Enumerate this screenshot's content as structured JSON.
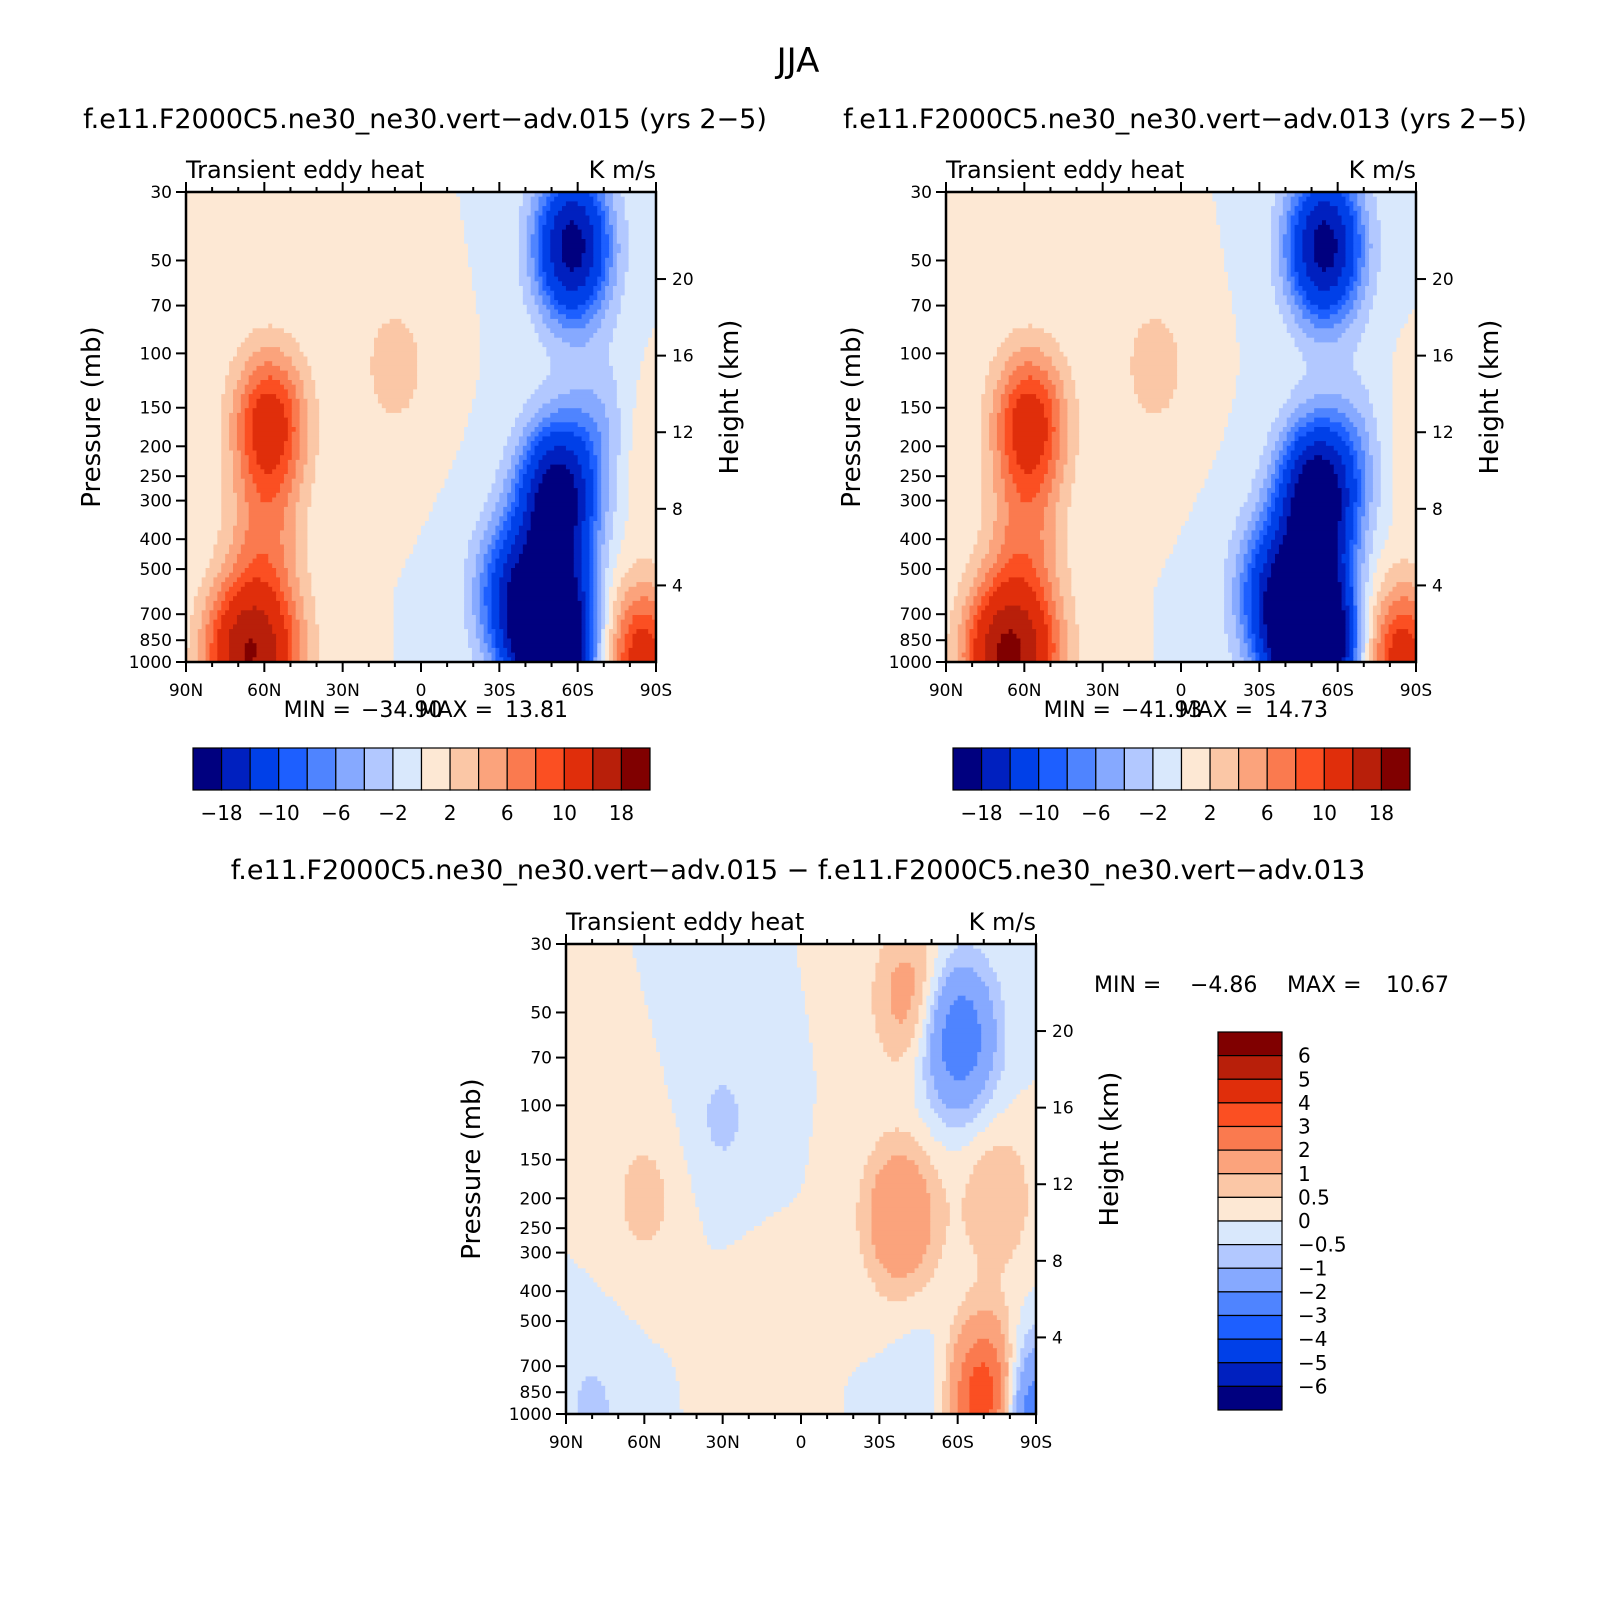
{
  "figure_title": "JJA",
  "palettes": {
    "seasonal": [
      "#00007f",
      "#0020bf",
      "#0040e8",
      "#1d5fff",
      "#4f84ff",
      "#86a9ff",
      "#b2c8ff",
      "#d9e8fc",
      "#fde8d4",
      "#fbc7a6",
      "#fba37c",
      "#fa7a4f",
      "#fb4f22",
      "#e02e0b",
      "#b81f0a",
      "#800000"
    ],
    "difference": [
      "#00007f",
      "#0020bf",
      "#0040e8",
      "#1d5fff",
      "#4f84ff",
      "#86a9ff",
      "#b2c8ff",
      "#d9e8fc",
      "#fde8d4",
      "#fbc7a6",
      "#fba37c",
      "#fa7a4f",
      "#fb4f22",
      "#e02e0b",
      "#b81f0a",
      "#800000"
    ]
  },
  "chart_data": [
    {
      "type": "heatmap",
      "title": "f.e11.F2000C5.ne30_ne30.vert−adv.015 (yrs 2−5)",
      "left_label": "Transient eddy heat",
      "right_label": "K m/s",
      "ylabel": "Pressure (mb)",
      "ylabel_right": "Height (km)",
      "x_ticks": [
        "90N",
        "60N",
        "30N",
        "0",
        "30S",
        "60S",
        "90S"
      ],
      "x_tick_values": [
        90,
        60,
        30,
        0,
        -30,
        -60,
        -90
      ],
      "y_ticks": [
        "30",
        "50",
        "70",
        "100",
        "150",
        "200",
        "250",
        "300",
        "400",
        "500",
        "700",
        "850",
        "1000"
      ],
      "y_tick_values": [
        30,
        50,
        70,
        100,
        150,
        200,
        250,
        300,
        400,
        500,
        700,
        850,
        1000
      ],
      "y_right_ticks": [
        "20",
        "16",
        "12",
        "8",
        "4"
      ],
      "y_right_tick_values": [
        20,
        16,
        12,
        8,
        4
      ],
      "ylim": [
        1000,
        30
      ],
      "ylog": true,
      "xlim": [
        90,
        -90
      ],
      "min_label": "MIN =",
      "min_value": "−34.90",
      "max_label": "MAX =",
      "max_value": "13.81",
      "colorbar": {
        "orientation": "horizontal",
        "labels": [
          "−18",
          "−10",
          "−6",
          "−2",
          "2",
          "6",
          "10",
          "18"
        ]
      },
      "features": [
        {
          "lat": -50,
          "p": 840,
          "value": -36
        },
        {
          "lat": -52,
          "p": 300,
          "value": -22
        },
        {
          "lat": -58,
          "p": 45,
          "value": -20
        },
        {
          "lat": -35,
          "p": 600,
          "value": -12
        },
        {
          "lat": -70,
          "p": 180,
          "value": -5
        },
        {
          "lat": 58,
          "p": 170,
          "value": 12
        },
        {
          "lat": 70,
          "p": 950,
          "value": 13
        },
        {
          "lat": 57,
          "p": 930,
          "value": 9
        },
        {
          "lat": 60,
          "p": 400,
          "value": 5
        },
        {
          "lat": 10,
          "p": 110,
          "value": 3
        },
        {
          "lat": -80,
          "p": 200,
          "value": 3
        },
        {
          "lat": -85,
          "p": 980,
          "value": 12
        }
      ]
    },
    {
      "type": "heatmap",
      "title": "f.e11.F2000C5.ne30_ne30.vert−adv.013 (yrs 2−5)",
      "left_label": "Transient eddy heat",
      "right_label": "K m/s",
      "ylabel": "Pressure (mb)",
      "ylabel_right": "Height (km)",
      "x_ticks": [
        "90N",
        "60N",
        "30N",
        "0",
        "30S",
        "60S",
        "90S"
      ],
      "x_tick_values": [
        90,
        60,
        30,
        0,
        -30,
        -60,
        -90
      ],
      "y_ticks": [
        "30",
        "50",
        "70",
        "100",
        "150",
        "200",
        "250",
        "300",
        "400",
        "500",
        "700",
        "850",
        "1000"
      ],
      "y_tick_values": [
        30,
        50,
        70,
        100,
        150,
        200,
        250,
        300,
        400,
        500,
        700,
        850,
        1000
      ],
      "y_right_ticks": [
        "20",
        "16",
        "12",
        "8",
        "4"
      ],
      "y_right_tick_values": [
        20,
        16,
        12,
        8,
        4
      ],
      "ylim": [
        1000,
        30
      ],
      "ylog": true,
      "xlim": [
        90,
        -90
      ],
      "min_label": "MIN =",
      "min_value": "−41.93",
      "max_label": "MAX =",
      "max_value": "14.73",
      "colorbar": {
        "orientation": "horizontal",
        "labels": [
          "−18",
          "−10",
          "−6",
          "−2",
          "2",
          "6",
          "10",
          "18"
        ]
      },
      "features": [
        {
          "lat": -50,
          "p": 840,
          "value": -42
        },
        {
          "lat": -52,
          "p": 300,
          "value": -24
        },
        {
          "lat": -55,
          "p": 45,
          "value": -20
        },
        {
          "lat": -35,
          "p": 600,
          "value": -12
        },
        {
          "lat": -70,
          "p": 200,
          "value": -5
        },
        {
          "lat": 58,
          "p": 170,
          "value": 12
        },
        {
          "lat": 70,
          "p": 950,
          "value": 14
        },
        {
          "lat": 57,
          "p": 930,
          "value": 9
        },
        {
          "lat": 60,
          "p": 400,
          "value": 5
        },
        {
          "lat": 10,
          "p": 110,
          "value": 3
        },
        {
          "lat": -78,
          "p": 200,
          "value": 3
        },
        {
          "lat": -85,
          "p": 980,
          "value": 12
        }
      ]
    },
    {
      "type": "heatmap",
      "title": "f.e11.F2000C5.ne30_ne30.vert−adv.015 − f.e11.F2000C5.ne30_ne30.vert−adv.013",
      "left_label": "Transient eddy heat",
      "right_label": "K m/s",
      "ylabel": "Pressure (mb)",
      "ylabel_right": "Height (km)",
      "x_ticks": [
        "90N",
        "60N",
        "30N",
        "0",
        "30S",
        "60S",
        "90S"
      ],
      "x_tick_values": [
        90,
        60,
        30,
        0,
        -30,
        -60,
        -90
      ],
      "y_ticks": [
        "30",
        "50",
        "70",
        "100",
        "150",
        "200",
        "250",
        "300",
        "400",
        "500",
        "700",
        "850",
        "1000"
      ],
      "y_tick_values": [
        30,
        50,
        70,
        100,
        150,
        200,
        250,
        300,
        400,
        500,
        700,
        850,
        1000
      ],
      "y_right_ticks": [
        "20",
        "16",
        "12",
        "8",
        "4"
      ],
      "y_right_tick_values": [
        20,
        16,
        12,
        8,
        4
      ],
      "ylim": [
        1000,
        30
      ],
      "ylog": true,
      "xlim": [
        90,
        -90
      ],
      "min_label": "MIN =",
      "min_value": "−4.86",
      "max_label": "MAX =",
      "max_value": "10.67",
      "colorbar": {
        "orientation": "vertical",
        "labels": [
          "6",
          "5",
          "4",
          "3",
          "2",
          "1",
          "0.5",
          "0",
          "−0.5",
          "−1",
          "−2",
          "−3",
          "−4",
          "−5",
          "−6"
        ]
      },
      "features": [
        {
          "lat": -42,
          "p": 45,
          "value": 1.5
        },
        {
          "lat": -60,
          "p": 60,
          "value": -3
        },
        {
          "lat": -38,
          "p": 230,
          "value": 2
        },
        {
          "lat": -75,
          "p": 200,
          "value": 1
        },
        {
          "lat": -72,
          "p": 900,
          "value": 5
        },
        {
          "lat": -85,
          "p": 990,
          "value": -4
        },
        {
          "lat": 60,
          "p": 200,
          "value": 0.7
        },
        {
          "lat": 30,
          "p": 110,
          "value": -0.6
        },
        {
          "lat": 80,
          "p": 960,
          "value": -0.6
        },
        {
          "lat": -50,
          "p": 900,
          "value": -0.6
        },
        {
          "lat": 15,
          "p": 600,
          "value": 0.4
        }
      ]
    }
  ]
}
